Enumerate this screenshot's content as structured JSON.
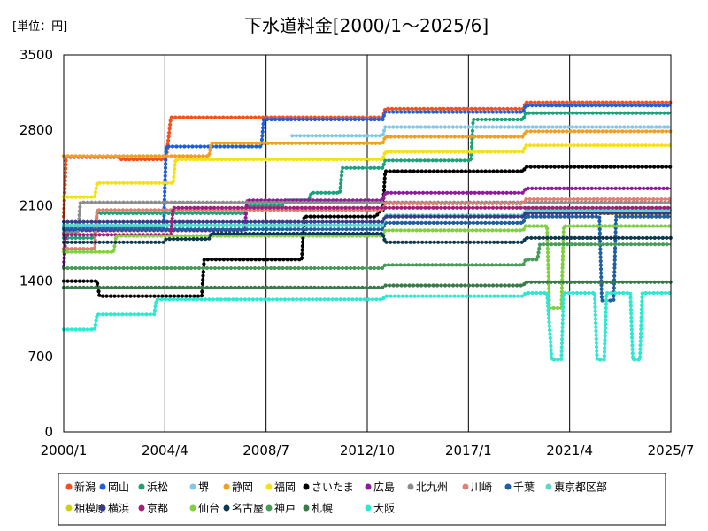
{
  "chart_data": {
    "type": "line",
    "title": "下水道料金[2000/1～2025/6]",
    "unit_label": "[単位：円]",
    "xlabel": "",
    "ylabel": "",
    "ylim": [
      0,
      3500
    ],
    "y_ticks": [
      "0",
      "700",
      "1400",
      "2100",
      "2800",
      "3500"
    ],
    "x_ticks": [
      "2000/1",
      "2004/4",
      "2008/7",
      "2012/10",
      "2017/1",
      "2021/4",
      "2025/7"
    ],
    "grid": "vertical",
    "legend_position": "bottom",
    "series": [
      {
        "name": "新潟",
        "color": "#f4511e",
        "points": [
          [
            2000.0,
            2000
          ],
          [
            2000.1,
            2550
          ],
          [
            2002.3,
            2550
          ],
          [
            2002.4,
            2530
          ],
          [
            2004.3,
            2530
          ],
          [
            2004.5,
            2920
          ],
          [
            2013.4,
            2920
          ],
          [
            2013.5,
            3000
          ],
          [
            2019.3,
            3000
          ],
          [
            2019.4,
            3060
          ],
          [
            2025.5,
            3060
          ]
        ]
      },
      {
        "name": "岡山",
        "color": "#1e5fdc",
        "points": [
          [
            2000.0,
            1900
          ],
          [
            2004.2,
            1900
          ],
          [
            2004.3,
            2650
          ],
          [
            2008.3,
            2650
          ],
          [
            2008.4,
            2900
          ],
          [
            2013.4,
            2900
          ],
          [
            2013.5,
            2970
          ],
          [
            2019.3,
            2970
          ],
          [
            2019.4,
            3030
          ],
          [
            2025.5,
            3030
          ]
        ]
      },
      {
        "name": "浜松",
        "color": "#1aa37a",
        "points": [
          [
            2000.0,
            1800
          ],
          [
            2001.3,
            1800
          ],
          [
            2001.4,
            2030
          ],
          [
            2007.6,
            2030
          ],
          [
            2007.7,
            2100
          ],
          [
            2009.2,
            2100
          ],
          [
            2009.3,
            2150
          ],
          [
            2010.3,
            2150
          ],
          [
            2010.4,
            2220
          ],
          [
            2011.6,
            2220
          ],
          [
            2011.7,
            2450
          ],
          [
            2013.4,
            2450
          ],
          [
            2013.5,
            2520
          ],
          [
            2017.1,
            2520
          ],
          [
            2017.2,
            2900
          ],
          [
            2019.3,
            2900
          ],
          [
            2019.4,
            2960
          ],
          [
            2025.5,
            2960
          ]
        ]
      },
      {
        "name": "堺",
        "color": "#7ec8ee",
        "points": [
          [
            2009.6,
            2750
          ],
          [
            2013.4,
            2750
          ],
          [
            2013.5,
            2830
          ],
          [
            2025.5,
            2830
          ]
        ]
      },
      {
        "name": "静岡",
        "color": "#f0a020",
        "points": [
          [
            2000.0,
            2560
          ],
          [
            2006.1,
            2560
          ],
          [
            2006.2,
            2680
          ],
          [
            2013.4,
            2680
          ],
          [
            2013.5,
            2740
          ],
          [
            2019.3,
            2740
          ],
          [
            2019.4,
            2790
          ],
          [
            2025.5,
            2790
          ]
        ]
      },
      {
        "name": "福岡",
        "color": "#f5e018",
        "points": [
          [
            2000.0,
            2180
          ],
          [
            2001.3,
            2180
          ],
          [
            2001.4,
            2310
          ],
          [
            2004.6,
            2310
          ],
          [
            2004.7,
            2530
          ],
          [
            2013.4,
            2530
          ],
          [
            2013.5,
            2600
          ],
          [
            2019.3,
            2600
          ],
          [
            2019.4,
            2660
          ],
          [
            2025.5,
            2660
          ]
        ]
      },
      {
        "name": "さいたま",
        "color": "#000000",
        "points": [
          [
            2000.0,
            1400
          ],
          [
            2001.4,
            1400
          ],
          [
            2001.5,
            1260
          ],
          [
            2005.8,
            1260
          ],
          [
            2005.9,
            1600
          ],
          [
            2010.0,
            1600
          ],
          [
            2010.1,
            2000
          ],
          [
            2013.1,
            2000
          ],
          [
            2013.3,
            2050
          ],
          [
            2013.4,
            2050
          ],
          [
            2013.5,
            2420
          ],
          [
            2019.3,
            2420
          ],
          [
            2019.4,
            2460
          ],
          [
            2025.5,
            2460
          ]
        ]
      },
      {
        "name": "広島",
        "color": "#8e1a9c",
        "points": [
          [
            2000.0,
            1540
          ],
          [
            2000.1,
            1870
          ],
          [
            2007.6,
            1870
          ],
          [
            2007.7,
            2150
          ],
          [
            2013.4,
            2150
          ],
          [
            2013.5,
            2220
          ],
          [
            2019.3,
            2220
          ],
          [
            2019.4,
            2260
          ],
          [
            2025.5,
            2260
          ]
        ]
      },
      {
        "name": "北九州",
        "color": "#8c8c8c",
        "points": [
          [
            2000.0,
            1850
          ],
          [
            2000.6,
            1850
          ],
          [
            2000.7,
            2130
          ],
          [
            2025.5,
            2130
          ]
        ]
      },
      {
        "name": "川崎",
        "color": "#e08070",
        "points": [
          [
            2000.0,
            1700
          ],
          [
            2001.3,
            1700
          ],
          [
            2001.4,
            2060
          ],
          [
            2013.4,
            2060
          ],
          [
            2013.5,
            2120
          ],
          [
            2019.3,
            2120
          ],
          [
            2019.4,
            2160
          ],
          [
            2025.5,
            2160
          ]
        ]
      },
      {
        "name": "千葉",
        "color": "#1f5fa0",
        "points": [
          [
            2000.0,
            1880
          ],
          [
            2013.4,
            1880
          ],
          [
            2013.5,
            1940
          ],
          [
            2019.3,
            1940
          ],
          [
            2019.4,
            2000
          ],
          [
            2022.5,
            2000
          ],
          [
            2022.6,
            1220
          ],
          [
            2023.1,
            1220
          ],
          [
            2023.2,
            2000
          ],
          [
            2025.5,
            2000
          ]
        ]
      },
      {
        "name": "東京都区部",
        "color": "#5ad8c8",
        "points": [
          [
            2000.0,
            1920
          ],
          [
            2013.4,
            1920
          ],
          [
            2013.5,
            2010
          ],
          [
            2019.3,
            2010
          ],
          [
            2019.4,
            2060
          ],
          [
            2025.5,
            2060
          ]
        ]
      },
      {
        "name": "相模原",
        "color": "#cfd010",
        "points": [
          [
            2022.6,
            2030
          ],
          [
            2025.5,
            2030
          ]
        ]
      },
      {
        "name": "横浜",
        "color": "#3a3a8a",
        "points": [
          [
            2000.0,
            1950
          ],
          [
            2013.4,
            1950
          ],
          [
            2013.5,
            2000
          ],
          [
            2019.3,
            2000
          ],
          [
            2019.4,
            2030
          ],
          [
            2025.5,
            2030
          ]
        ]
      },
      {
        "name": "京都",
        "color": "#a0207a",
        "points": [
          [
            2000.0,
            1830
          ],
          [
            2004.5,
            1830
          ],
          [
            2004.6,
            2080
          ],
          [
            2013.4,
            2080
          ],
          [
            2013.5,
            2080
          ],
          [
            2025.5,
            2080
          ]
        ]
      },
      {
        "name": "仙台",
        "color": "#80d040",
        "points": [
          [
            2000.0,
            1670
          ],
          [
            2002.1,
            1670
          ],
          [
            2002.2,
            1820
          ],
          [
            2013.4,
            1820
          ],
          [
            2013.5,
            1870
          ],
          [
            2019.3,
            1870
          ],
          [
            2019.4,
            1910
          ],
          [
            2020.3,
            1910
          ],
          [
            2020.4,
            1150
          ],
          [
            2020.9,
            1150
          ],
          [
            2021.0,
            1910
          ],
          [
            2025.5,
            1910
          ]
        ]
      },
      {
        "name": "名古屋",
        "color": "#0e3a50",
        "points": [
          [
            2000.0,
            1760
          ],
          [
            2004.2,
            1760
          ],
          [
            2004.3,
            1790
          ],
          [
            2006.1,
            1790
          ],
          [
            2006.2,
            1840
          ],
          [
            2013.4,
            1840
          ],
          [
            2013.5,
            1760
          ],
          [
            2019.3,
            1760
          ],
          [
            2019.4,
            1800
          ],
          [
            2025.5,
            1800
          ]
        ]
      },
      {
        "name": "神戸",
        "color": "#4a9a5a",
        "points": [
          [
            2000.0,
            1520
          ],
          [
            2013.4,
            1520
          ],
          [
            2013.5,
            1550
          ],
          [
            2019.3,
            1550
          ],
          [
            2019.4,
            1600
          ],
          [
            2019.9,
            1600
          ],
          [
            2020.0,
            1740
          ],
          [
            2025.5,
            1740
          ]
        ]
      },
      {
        "name": "札幌",
        "color": "#3a7a4a",
        "points": [
          [
            2000.0,
            1340
          ],
          [
            2013.4,
            1340
          ],
          [
            2013.5,
            1360
          ],
          [
            2019.3,
            1360
          ],
          [
            2019.4,
            1390
          ],
          [
            2025.5,
            1390
          ]
        ]
      },
      {
        "name": "大阪",
        "color": "#30e8d0",
        "points": [
          [
            2000.0,
            950
          ],
          [
            2001.3,
            950
          ],
          [
            2001.4,
            1090
          ],
          [
            2003.8,
            1090
          ],
          [
            2003.9,
            1230
          ],
          [
            2013.4,
            1230
          ],
          [
            2013.5,
            1260
          ],
          [
            2019.3,
            1260
          ],
          [
            2019.4,
            1290
          ],
          [
            2020.3,
            1290
          ],
          [
            2020.5,
            670
          ],
          [
            2020.9,
            670
          ],
          [
            2021.0,
            1290
          ],
          [
            2022.3,
            1290
          ],
          [
            2022.4,
            670
          ],
          [
            2022.7,
            670
          ],
          [
            2022.8,
            1290
          ],
          [
            2023.8,
            1290
          ],
          [
            2023.9,
            670
          ],
          [
            2024.2,
            670
          ],
          [
            2024.3,
            1290
          ],
          [
            2025.5,
            1290
          ]
        ]
      }
    ]
  }
}
